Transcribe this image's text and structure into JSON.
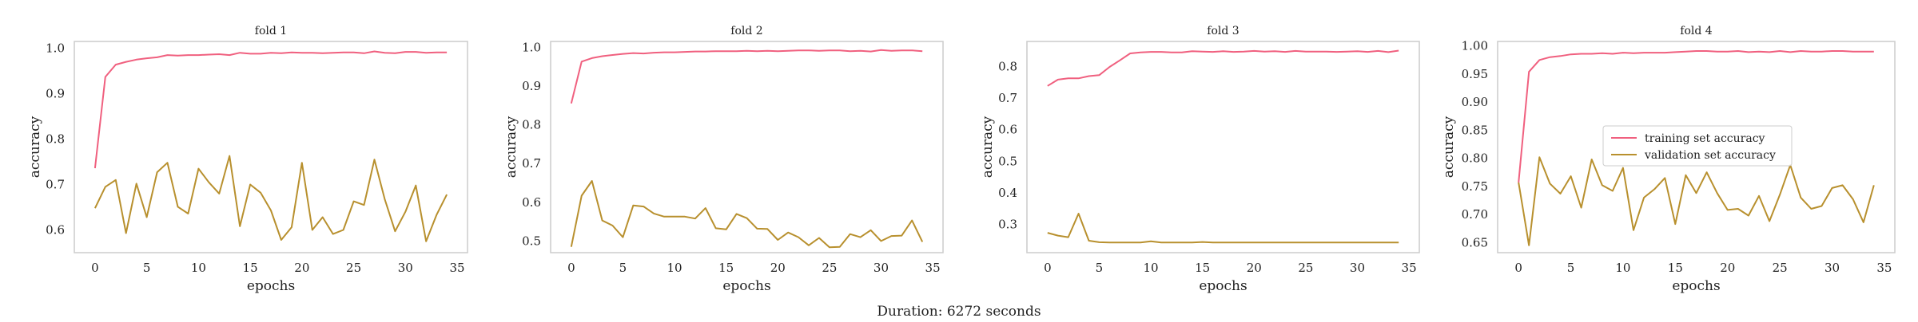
{
  "figure": {
    "caption": "Duration: 6272 seconds"
  },
  "legend": {
    "items": [
      "training set accuracy",
      "validation set accuracy"
    ],
    "placement": "center-right"
  },
  "colors": {
    "training": "#f0607f",
    "validation": "#b8902e",
    "frame": "#cccccc",
    "text": "#222222"
  },
  "chart_data": [
    {
      "type": "line",
      "title": "fold 1",
      "xlabel": "epochs",
      "ylabel": "accuracy",
      "xlim": [
        -2,
        36
      ],
      "ylim": [
        0.55,
        1.015
      ],
      "xticks": [
        0,
        5,
        10,
        15,
        20,
        25,
        30,
        35
      ],
      "yticks": [
        0.6,
        0.7,
        0.8,
        0.9,
        1.0
      ],
      "ytick_labels": [
        "0.6",
        "0.7",
        "0.8",
        "0.9",
        "1.0"
      ],
      "grid": false,
      "series": [
        {
          "key": "train",
          "values": [
            0.736,
            0.937,
            0.964,
            0.97,
            0.975,
            0.978,
            0.98,
            0.985,
            0.984,
            0.985,
            0.985,
            0.986,
            0.987,
            0.985,
            0.99,
            0.988,
            0.988,
            0.99,
            0.989,
            0.991,
            0.99,
            0.99,
            0.989,
            0.99,
            0.991,
            0.991,
            0.989,
            0.993,
            0.99,
            0.989,
            0.992,
            0.992,
            0.99,
            0.991,
            0.991
          ]
        },
        {
          "key": "val",
          "values": [
            0.648,
            0.695,
            0.71,
            0.593,
            0.702,
            0.628,
            0.727,
            0.748,
            0.651,
            0.636,
            0.735,
            0.705,
            0.68,
            0.763,
            0.608,
            0.7,
            0.682,
            0.643,
            0.578,
            0.606,
            0.748,
            0.6,
            0.628,
            0.591,
            0.6,
            0.663,
            0.655,
            0.755,
            0.668,
            0.597,
            0.64,
            0.698,
            0.575,
            0.633,
            0.678
          ]
        }
      ]
    },
    {
      "type": "line",
      "title": "fold 2",
      "xlabel": "epochs",
      "ylabel": "accuracy",
      "xlim": [
        -2,
        36
      ],
      "ylim": [
        0.47,
        1.015
      ],
      "xticks": [
        0,
        5,
        10,
        15,
        20,
        25,
        30,
        35
      ],
      "yticks": [
        0.5,
        0.6,
        0.7,
        0.8,
        0.9,
        1.0
      ],
      "ytick_labels": [
        "0.5",
        "0.6",
        "0.7",
        "0.8",
        "0.9",
        "1.0"
      ],
      "grid": false,
      "series": [
        {
          "key": "train",
          "values": [
            0.855,
            0.963,
            0.972,
            0.977,
            0.98,
            0.983,
            0.985,
            0.984,
            0.986,
            0.987,
            0.987,
            0.988,
            0.989,
            0.989,
            0.99,
            0.99,
            0.99,
            0.991,
            0.99,
            0.991,
            0.99,
            0.991,
            0.992,
            0.992,
            0.991,
            0.992,
            0.992,
            0.99,
            0.991,
            0.989,
            0.993,
            0.991,
            0.992,
            0.992,
            0.99
          ]
        },
        {
          "key": "val",
          "values": [
            0.485,
            0.617,
            0.655,
            0.553,
            0.54,
            0.51,
            0.592,
            0.589,
            0.571,
            0.563,
            0.563,
            0.563,
            0.558,
            0.585,
            0.533,
            0.53,
            0.57,
            0.559,
            0.532,
            0.531,
            0.503,
            0.522,
            0.51,
            0.489,
            0.508,
            0.484,
            0.485,
            0.518,
            0.51,
            0.528,
            0.5,
            0.513,
            0.514,
            0.553,
            0.498
          ]
        }
      ]
    },
    {
      "type": "line",
      "title": "fold 3",
      "xlabel": "epochs",
      "ylabel": "accuracy",
      "xlim": [
        -2,
        36
      ],
      "ylim": [
        0.21,
        0.88
      ],
      "xticks": [
        0,
        5,
        10,
        15,
        20,
        25,
        30,
        35
      ],
      "yticks": [
        0.3,
        0.4,
        0.5,
        0.6,
        0.7,
        0.8
      ],
      "ytick_labels": [
        "0.3",
        "0.4",
        "0.5",
        "0.6",
        "0.7",
        "0.8"
      ],
      "grid": false,
      "series": [
        {
          "key": "train",
          "values": [
            0.739,
            0.759,
            0.763,
            0.763,
            0.77,
            0.773,
            0.799,
            0.82,
            0.842,
            0.845,
            0.847,
            0.847,
            0.845,
            0.845,
            0.849,
            0.848,
            0.847,
            0.849,
            0.847,
            0.848,
            0.85,
            0.848,
            0.849,
            0.847,
            0.85,
            0.848,
            0.848,
            0.848,
            0.847,
            0.848,
            0.849,
            0.847,
            0.85,
            0.846,
            0.851
          ]
        },
        {
          "key": "val",
          "values": [
            0.273,
            0.264,
            0.259,
            0.334,
            0.248,
            0.243,
            0.242,
            0.242,
            0.242,
            0.242,
            0.246,
            0.242,
            0.242,
            0.242,
            0.242,
            0.244,
            0.242,
            0.242,
            0.242,
            0.242,
            0.242,
            0.242,
            0.242,
            0.242,
            0.242,
            0.242,
            0.242,
            0.242,
            0.242,
            0.242,
            0.242,
            0.242,
            0.242,
            0.242,
            0.242
          ]
        }
      ]
    },
    {
      "type": "line",
      "title": "fold 4",
      "xlabel": "epochs",
      "ylabel": "accuracy",
      "xlim": [
        -2,
        36
      ],
      "ylim": [
        0.632,
        1.008
      ],
      "xticks": [
        0,
        5,
        10,
        15,
        20,
        25,
        30,
        35
      ],
      "yticks": [
        0.65,
        0.7,
        0.75,
        0.8,
        0.85,
        0.9,
        0.95,
        1.0
      ],
      "ytick_labels": [
        "0.65",
        "0.70",
        "0.75",
        "0.80",
        "0.85",
        "0.90",
        "0.95",
        "1.00"
      ],
      "grid": false,
      "series": [
        {
          "key": "train",
          "values": [
            0.757,
            0.954,
            0.975,
            0.98,
            0.982,
            0.985,
            0.986,
            0.986,
            0.987,
            0.986,
            0.988,
            0.987,
            0.988,
            0.988,
            0.988,
            0.989,
            0.99,
            0.991,
            0.991,
            0.99,
            0.99,
            0.991,
            0.989,
            0.99,
            0.989,
            0.991,
            0.989,
            0.991,
            0.99,
            0.99,
            0.991,
            0.991,
            0.99,
            0.99,
            0.99
          ]
        },
        {
          "key": "val",
          "values": [
            0.757,
            0.645,
            0.802,
            0.755,
            0.737,
            0.768,
            0.712,
            0.798,
            0.752,
            0.742,
            0.783,
            0.672,
            0.73,
            0.745,
            0.765,
            0.683,
            0.77,
            0.738,
            0.775,
            0.738,
            0.708,
            0.71,
            0.698,
            0.733,
            0.688,
            0.735,
            0.788,
            0.73,
            0.71,
            0.715,
            0.747,
            0.752,
            0.727,
            0.686,
            0.752
          ]
        }
      ]
    }
  ]
}
